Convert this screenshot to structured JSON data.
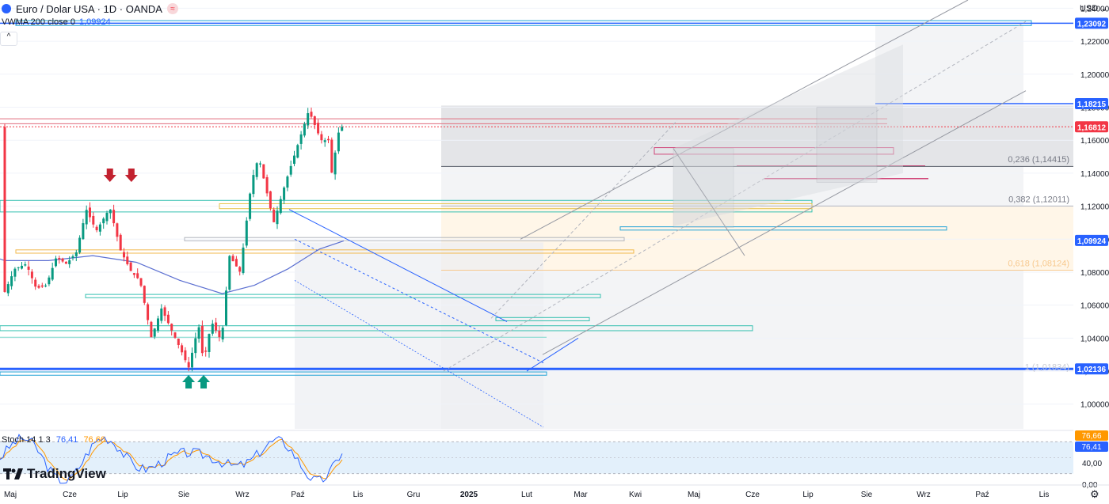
{
  "header": {
    "symbol_title": "Euro / Dolar USA · 1D · OANDA",
    "logo_icon": "euro-flag-icon",
    "badge_icon": "approx-icon",
    "badge_glyph": "≈"
  },
  "indicator_vwma": {
    "label": "VWMA 200 close 0",
    "value": "1,09924"
  },
  "indicator_stoch": {
    "label": "Stoch 14 1 3",
    "k_value": "76,41",
    "d_value": "76,66"
  },
  "brand": {
    "name": "TradingView"
  },
  "currency": "USD",
  "chart_data": {
    "type": "candlestick",
    "instrument": "EUR/USD",
    "timeframe": "1D",
    "y_axis_ticks": [
      "1,24000",
      "1,22000",
      "1,20000",
      "1,18000",
      "1,16000",
      "1,14000",
      "1,12000",
      "1,10000",
      "1,08000",
      "1,06000",
      "1,04000",
      "1,02000",
      "1,00000"
    ],
    "ylim": [
      0.985,
      1.245
    ],
    "x_axis_labels": [
      "Maj",
      "Cze",
      "Lip",
      "Sie",
      "Wrz",
      "Paź",
      "Lis",
      "Gru",
      "2025",
      "Lut",
      "Mar",
      "Kwi",
      "Maj",
      "Cze",
      "Lip",
      "Sie",
      "Wrz",
      "Paź",
      "Lis"
    ],
    "x_axis_bold": "2025",
    "price_labels": [
      {
        "value": "1,23092",
        "price": 1.23092,
        "color": "#2962ff"
      },
      {
        "value": "1,18215",
        "price": 1.18215,
        "color": "#2962ff"
      },
      {
        "value": "1,16812",
        "price": 1.16812,
        "color": "#f23645"
      },
      {
        "value": "1,09924",
        "price": 1.09924,
        "color": "#2962ff"
      },
      {
        "value": "1,02136",
        "price": 1.02136,
        "color": "#2962ff"
      }
    ],
    "fib_levels": [
      {
        "label": "0,236 (1,14415)",
        "price": 1.14415,
        "color": "#787b86"
      },
      {
        "label": "0,382 (1,12011)",
        "price": 1.12011,
        "color": "#787b86"
      },
      {
        "label": "0,618 (1,08124)",
        "price": 1.08124,
        "color": "#f7c98f"
      },
      {
        "label": "1 (1,01834)",
        "price": 1.01834,
        "color": "#c8cbd4"
      }
    ],
    "price_series": [
      [
        "2024-05-01",
        1.068
      ],
      [
        "2024-05-15",
        1.082
      ],
      [
        "2024-05-31",
        1.085
      ],
      [
        "2024-06-14",
        1.07
      ],
      [
        "2024-06-28",
        1.072
      ],
      [
        "2024-07-12",
        1.089
      ],
      [
        "2024-07-26",
        1.085
      ],
      [
        "2024-08-09",
        1.092
      ],
      [
        "2024-08-23",
        1.118
      ],
      [
        "2024-09-06",
        1.105
      ],
      [
        "2024-09-25",
        1.119
      ],
      [
        "2024-10-10",
        1.093
      ],
      [
        "2024-10-25",
        1.08
      ],
      [
        "2024-11-06",
        1.075
      ],
      [
        "2024-11-22",
        1.04
      ],
      [
        "2024-12-06",
        1.058
      ],
      [
        "2024-12-20",
        1.045
      ],
      [
        "2025-01-03",
        1.032
      ],
      [
        "2025-01-13",
        1.022
      ],
      [
        "2025-01-27",
        1.048
      ],
      [
        "2025-02-03",
        1.025
      ],
      [
        "2025-02-14",
        1.05
      ],
      [
        "2025-02-28",
        1.038
      ],
      [
        "2025-03-11",
        1.09
      ],
      [
        "2025-03-26",
        1.08
      ],
      [
        "2025-04-11",
        1.135
      ],
      [
        "2025-04-21",
        1.15
      ],
      [
        "2025-05-12",
        1.11
      ],
      [
        "2025-05-29",
        1.135
      ],
      [
        "2025-06-13",
        1.155
      ],
      [
        "2025-06-30",
        1.178
      ],
      [
        "2025-07-17",
        1.16
      ],
      [
        "2025-07-28",
        1.16
      ],
      [
        "2025-08-01",
        1.14
      ],
      [
        "2025-08-12",
        1.168
      ],
      [
        "2025-08-18",
        1.168
      ]
    ],
    "vwma_series": [
      [
        "2024-05-01",
        1.087
      ],
      [
        "2024-07-01",
        1.087
      ],
      [
        "2024-09-01",
        1.09
      ],
      [
        "2024-11-01",
        1.086
      ],
      [
        "2025-01-01",
        1.075
      ],
      [
        "2025-03-01",
        1.067
      ],
      [
        "2025-04-15",
        1.072
      ],
      [
        "2025-06-01",
        1.082
      ],
      [
        "2025-07-15",
        1.094
      ],
      [
        "2025-08-18",
        1.099
      ]
    ],
    "stoch_axis_ticks": [
      "40,00",
      "0,00"
    ],
    "stoch_labels": [
      {
        "value": "76,66",
        "color": "#ff9800"
      },
      {
        "value": "76,41",
        "color": "#2962ff"
      }
    ],
    "stoch_band": [
      20,
      80
    ],
    "annotations": [
      {
        "type": "arrow-down",
        "color": "#c2212f",
        "date": "2024-09-25"
      },
      {
        "type": "arrow-down",
        "color": "#c2212f",
        "date": "2024-10-25"
      },
      {
        "type": "arrow-up",
        "color": "#089981",
        "date": "2025-01-13"
      },
      {
        "type": "arrow-up",
        "color": "#089981",
        "date": "2025-02-03"
      }
    ],
    "grid": false
  }
}
